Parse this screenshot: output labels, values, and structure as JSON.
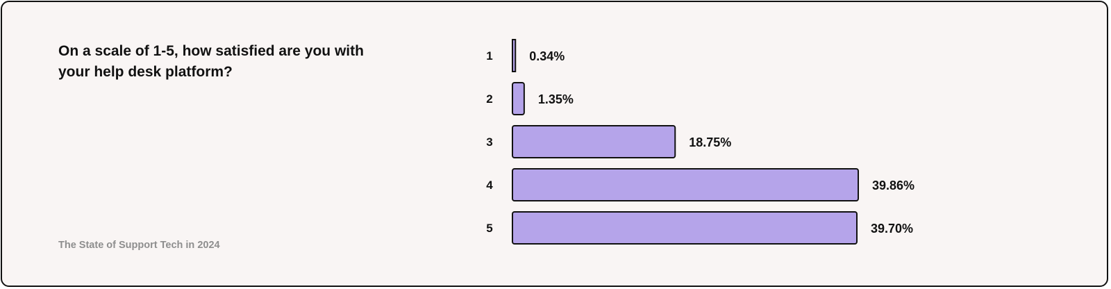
{
  "question": "On a scale of 1-5, how satisfied are you with your help desk platform?",
  "source": "The State of Support Tech in 2024",
  "colors": {
    "bar_fill": "#b5a4ea",
    "bar_stroke": "#111111",
    "background": "#f9f5f4"
  },
  "chart_data": {
    "type": "bar",
    "orientation": "horizontal",
    "title": "On a scale of 1-5, how satisfied are you with your help desk platform?",
    "categories": [
      "1",
      "2",
      "3",
      "4",
      "5"
    ],
    "values": [
      0.34,
      1.35,
      18.75,
      39.86,
      39.7
    ],
    "value_labels": [
      "0.34%",
      "1.35%",
      "18.75%",
      "39.86%",
      "39.70%"
    ],
    "unit": "%",
    "grid": false,
    "legend": "none"
  }
}
